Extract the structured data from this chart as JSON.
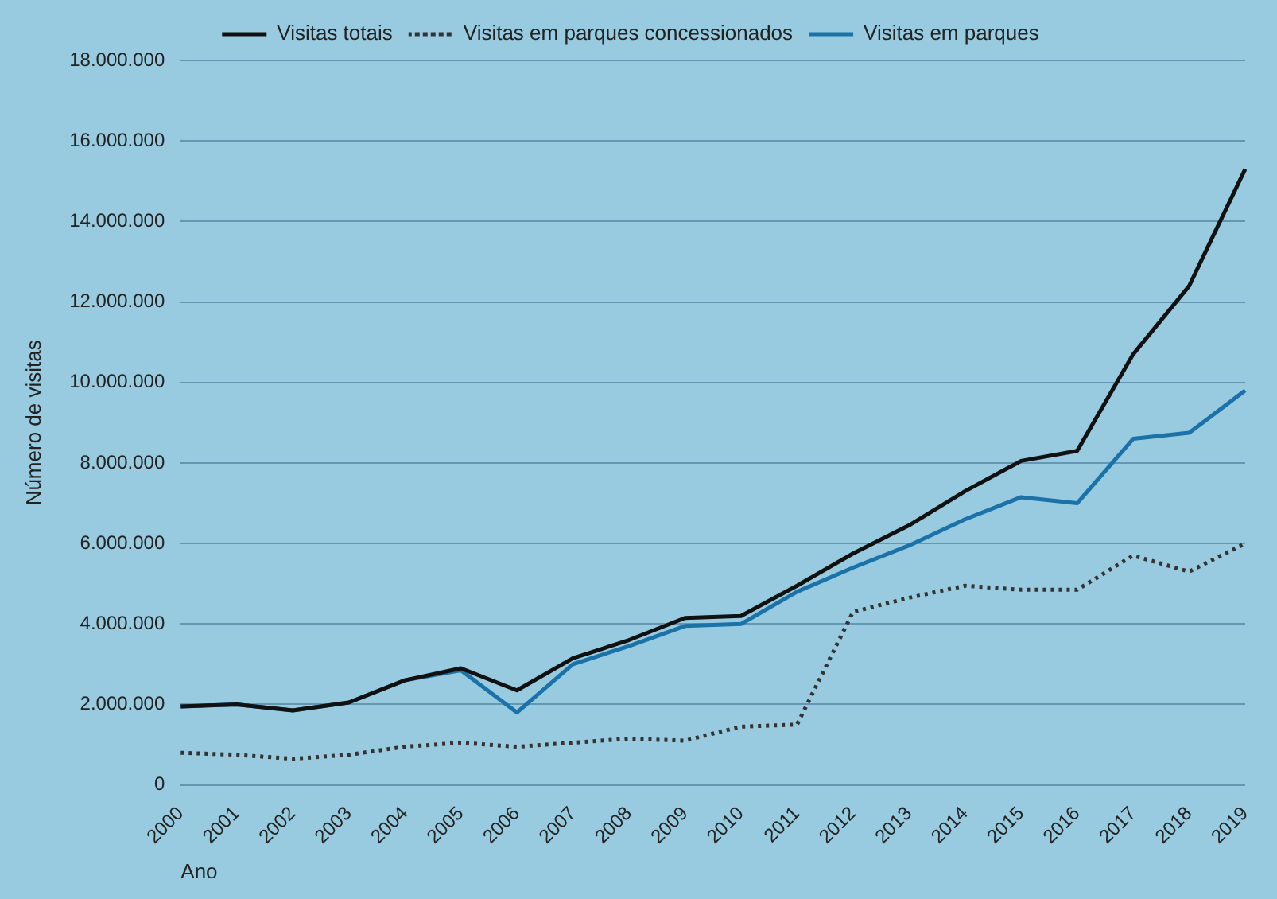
{
  "chart_data": {
    "type": "line",
    "xlabel": "Ano",
    "ylabel": "Número de visitas",
    "categories": [
      "2000",
      "2001",
      "2002",
      "2003",
      "2004",
      "2005",
      "2006",
      "2007",
      "2008",
      "2009",
      "2010",
      "2011",
      "2012",
      "2013",
      "2014",
      "2015",
      "2016",
      "2017",
      "2018",
      "2019"
    ],
    "series": [
      {
        "name": "Visitas totais",
        "color": "#111111",
        "line_style": "solid",
        "values": [
          1950000,
          2000000,
          1850000,
          2050000,
          2600000,
          2900000,
          2350000,
          3150000,
          3600000,
          4150000,
          4200000,
          4950000,
          5750000,
          6450000,
          7300000,
          8050000,
          8300000,
          10700000,
          12400000,
          15300000
        ]
      },
      {
        "name": "Visitas em parques concessionados",
        "color": "#333333",
        "line_style": "dotted",
        "values": [
          800000,
          750000,
          650000,
          750000,
          950000,
          1050000,
          950000,
          1050000,
          1150000,
          1100000,
          1450000,
          1500000,
          4300000,
          4650000,
          4950000,
          4850000,
          4850000,
          5700000,
          5300000,
          6000000
        ]
      },
      {
        "name": "Visitas em parques",
        "color": "#1a72a8",
        "line_style": "solid",
        "values": [
          1950000,
          2000000,
          1850000,
          2050000,
          2600000,
          2850000,
          1800000,
          3000000,
          3450000,
          3950000,
          4000000,
          4800000,
          5400000,
          5950000,
          6600000,
          7150000,
          7000000,
          8600000,
          8750000,
          9800000
        ]
      }
    ],
    "ylim": [
      0,
      18000000
    ],
    "yticks": [
      0,
      {
        "value": 2000000,
        "label": "2.000.000"
      },
      {
        "value": 4000000,
        "label": "4.000.000"
      },
      {
        "value": 6000000,
        "label": "6.000.000"
      },
      {
        "value": 8000000,
        "label": "8.000.000"
      },
      {
        "value": 10000000,
        "label": "10.000.000"
      },
      {
        "value": 12000000,
        "label": "12.000.000"
      },
      {
        "value": 14000000,
        "label": "14.000.000"
      },
      {
        "value": 16000000,
        "label": "16.000.000"
      },
      {
        "value": 18000000,
        "label": "18.000.000"
      }
    ],
    "grid": "y",
    "legend": "top",
    "marker": "none"
  }
}
